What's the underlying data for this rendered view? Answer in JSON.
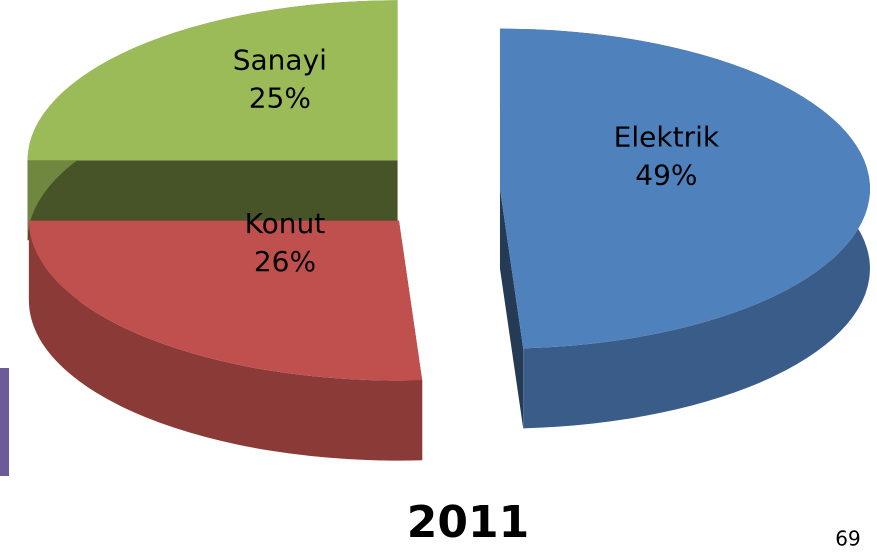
{
  "chart_data": {
    "type": "pie",
    "title": "2011",
    "categories": [
      "Elektrik",
      "Konut",
      "Sanayi"
    ],
    "values": [
      49,
      26,
      25
    ],
    "value_labels": [
      "49%",
      "26%",
      "25%"
    ],
    "colors": [
      "#4f81bd",
      "#c0504d",
      "#9bbb59"
    ]
  },
  "page_number": "69"
}
